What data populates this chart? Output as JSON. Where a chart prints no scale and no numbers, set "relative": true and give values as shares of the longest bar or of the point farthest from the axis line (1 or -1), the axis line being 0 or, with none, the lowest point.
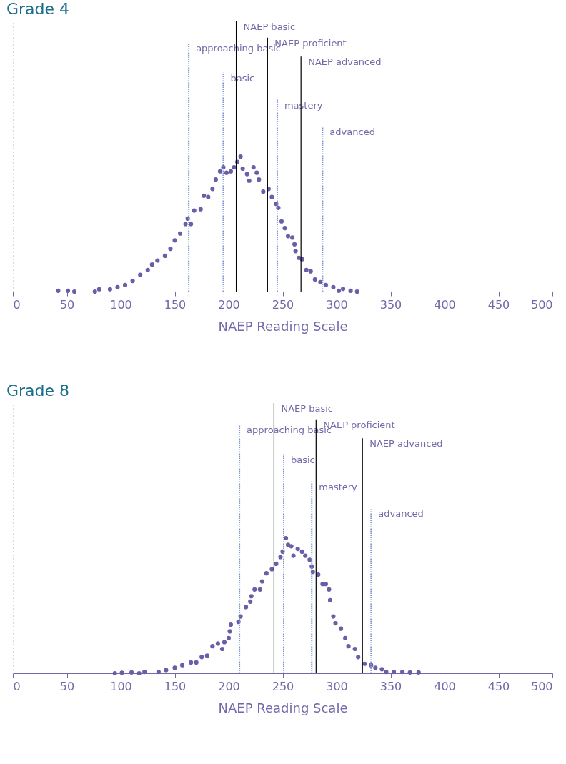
{
  "chart_data": [
    {
      "type": "scatter",
      "title": "Grade 4",
      "xlabel": "NAEP Reading Scale",
      "relative": true,
      "xlim": [
        0,
        500
      ],
      "xticks": [
        0,
        50,
        100,
        150,
        200,
        250,
        300,
        350,
        400,
        450,
        500
      ],
      "grid": false,
      "tick_labels": "x",
      "marker": "circle",
      "series": [
        {
          "color": "#6a5ea8",
          "x": [
            42,
            51,
            57,
            76,
            80,
            90,
            97,
            104,
            111,
            118,
            125,
            129,
            134,
            141,
            146,
            150,
            155,
            160,
            162,
            165,
            168,
            174,
            177,
            181,
            185,
            188,
            192,
            195,
            198,
            202,
            205,
            208,
            211,
            213,
            217,
            219,
            223,
            226,
            228,
            232,
            237,
            240,
            244,
            246,
            249,
            252,
            255,
            259,
            261,
            262,
            265,
            268,
            272,
            276,
            280,
            285,
            290,
            297,
            302,
            306,
            313,
            319
          ],
          "values": [
            0.006,
            0.006,
            0,
            0,
            0.017,
            0.017,
            0.033,
            0.048,
            0.079,
            0.124,
            0.16,
            0.2,
            0.23,
            0.265,
            0.317,
            0.379,
            0.43,
            0.5,
            0.54,
            0.5,
            0.6,
            0.61,
            0.71,
            0.7,
            0.76,
            0.83,
            0.89,
            0.92,
            0.88,
            0.89,
            0.92,
            0.96,
            1.0,
            0.91,
            0.87,
            0.82,
            0.92,
            0.88,
            0.83,
            0.74,
            0.76,
            0.7,
            0.65,
            0.62,
            0.52,
            0.47,
            0.41,
            0.4,
            0.35,
            0.3,
            0.25,
            0.24,
            0.16,
            0.15,
            0.09,
            0.07,
            0.048,
            0.033,
            0.006,
            0.02,
            0.006,
            0
          ]
        }
      ],
      "ref_lines": [
        {
          "axis": "x",
          "value": 163,
          "label": "approaching basic",
          "color": "#7f94d0",
          "line_style": "dotted"
        },
        {
          "axis": "x",
          "value": 195,
          "label": "basic",
          "color": "#7f94d0",
          "line_style": "dotted"
        },
        {
          "axis": "x",
          "value": 245,
          "label": "mastery",
          "color": "#7f94d0",
          "line_style": "dotted"
        },
        {
          "axis": "x",
          "value": 287,
          "label": "advanced",
          "color": "#7f94d0",
          "line_style": "dotted"
        },
        {
          "axis": "x",
          "value": 207,
          "label": "NAEP basic",
          "color": "#000000",
          "line_style": "solid"
        },
        {
          "axis": "x",
          "value": 236,
          "label": "NAEP proficient",
          "color": "#000000",
          "line_style": "solid"
        },
        {
          "axis": "x",
          "value": 267,
          "label": "NAEP advanced",
          "color": "#000000",
          "line_style": "solid"
        }
      ]
    },
    {
      "type": "scatter",
      "title": "Grade 8",
      "xlabel": "NAEP Reading Scale",
      "relative": true,
      "xlim": [
        0,
        500
      ],
      "xticks": [
        0,
        50,
        100,
        150,
        200,
        250,
        300,
        350,
        400,
        450,
        500
      ],
      "grid": false,
      "tick_labels": "x",
      "marker": "circle",
      "series": [
        {
          "color": "#6a5ea8",
          "x": [
            94.5,
            101,
            110,
            117,
            122,
            135,
            142,
            150,
            157,
            165,
            170,
            175,
            180,
            185,
            190,
            194,
            196,
            200,
            201,
            202,
            209,
            211,
            216,
            220,
            221,
            224,
            229,
            231,
            235,
            240,
            244,
            248,
            250,
            253,
            255,
            258,
            260,
            264,
            268,
            271,
            275,
            277,
            278,
            283,
            287,
            290,
            293,
            294,
            297,
            299,
            304,
            308,
            311,
            317,
            320,
            326,
            332,
            336,
            342,
            346,
            353,
            361,
            368,
            376
          ],
          "values": [
            0,
            0.004,
            0.006,
            0,
            0.01,
            0.01,
            0.024,
            0.04,
            0.06,
            0.08,
            0.08,
            0.12,
            0.13,
            0.2,
            0.22,
            0.18,
            0.23,
            0.26,
            0.31,
            0.36,
            0.38,
            0.42,
            0.49,
            0.53,
            0.57,
            0.62,
            0.62,
            0.68,
            0.74,
            0.77,
            0.81,
            0.86,
            0.9,
            1.0,
            0.95,
            0.94,
            0.87,
            0.92,
            0.9,
            0.87,
            0.84,
            0.79,
            0.75,
            0.73,
            0.66,
            0.66,
            0.62,
            0.54,
            0.42,
            0.37,
            0.33,
            0.26,
            0.2,
            0.18,
            0.12,
            0.07,
            0.06,
            0.04,
            0.03,
            0.01,
            0.01,
            0.01,
            0.006,
            0.006
          ]
        }
      ],
      "ref_lines": [
        {
          "axis": "x",
          "value": 210,
          "label": "approaching basic",
          "color": "#7f94d0",
          "line_style": "dotted"
        },
        {
          "axis": "x",
          "value": 251,
          "label": "basic",
          "color": "#7f94d0",
          "line_style": "dotted"
        },
        {
          "axis": "x",
          "value": 277,
          "label": "mastery",
          "color": "#7f94d0",
          "line_style": "dotted"
        },
        {
          "axis": "x",
          "value": 332,
          "label": "advanced",
          "color": "#7f94d0",
          "line_style": "dotted"
        },
        {
          "axis": "x",
          "value": 242,
          "label": "NAEP basic",
          "color": "#000000",
          "line_style": "solid"
        },
        {
          "axis": "x",
          "value": 281,
          "label": "NAEP proficient",
          "color": "#000000",
          "line_style": "solid"
        },
        {
          "axis": "x",
          "value": 324,
          "label": "NAEP advanced",
          "color": "#000000",
          "line_style": "solid"
        }
      ]
    }
  ]
}
